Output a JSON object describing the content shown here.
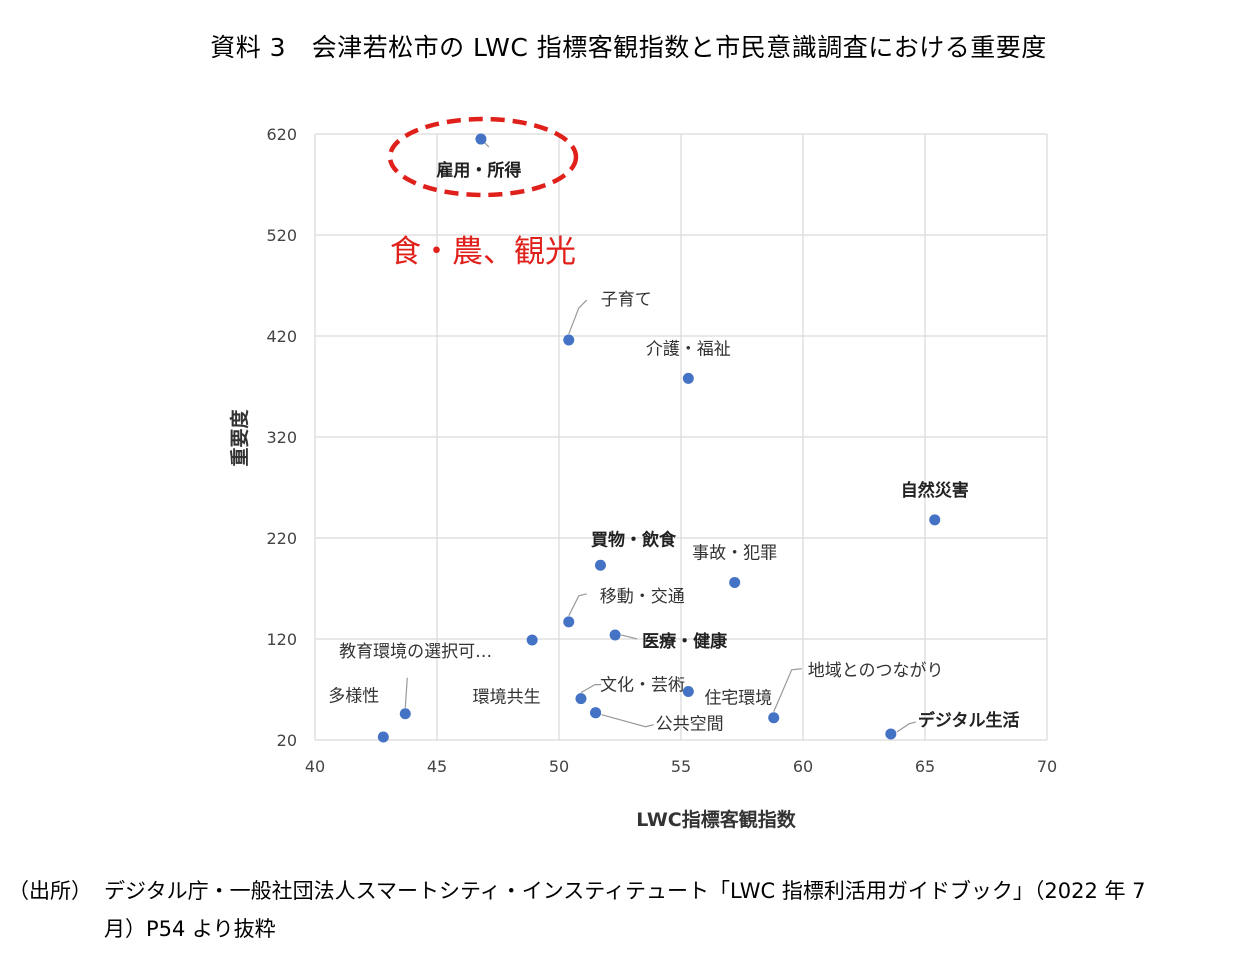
{
  "page": {
    "title": "資料 3　会津若松市の LWC 指標客観指数と市民意識調査における重要度",
    "source_label": "（出所）",
    "source_line1": "デジタル庁・一般社団法人スマートシティ・インスティテュート「LWC 指標利活用ガイドブック」（2022 年 7",
    "source_line2": "月）P54 より抜粋"
  },
  "chart_data": {
    "type": "scatter",
    "xlabel": "LWC指標客観指数",
    "ylabel": "重要度",
    "xlim": [
      40,
      70
    ],
    "ylim": [
      20,
      620
    ],
    "xticks": [
      "40",
      "45",
      "50",
      "55",
      "60",
      "65",
      "70"
    ],
    "yticks": [
      "620",
      "520",
      "420",
      "320",
      "220",
      "120",
      "20"
    ],
    "grid": true,
    "point_color": "#4472c4",
    "annotation": {
      "text": "食・農、観光",
      "color": "#e0201b"
    },
    "highlight": {
      "target": "雇用・所得",
      "shape": "dashed-ellipse",
      "color": "#e0201b"
    },
    "points": [
      {
        "label": "雇用・所得",
        "x": 46.8,
        "y": 615,
        "bold": true
      },
      {
        "label": "子育て",
        "x": 50.4,
        "y": 416,
        "bold": false
      },
      {
        "label": "介護・福祉",
        "x": 55.3,
        "y": 378,
        "bold": false
      },
      {
        "label": "自然災害",
        "x": 65.4,
        "y": 238,
        "bold": true
      },
      {
        "label": "買物・飲食",
        "x": 51.7,
        "y": 193,
        "bold": true
      },
      {
        "label": "事故・犯罪",
        "x": 57.2,
        "y": 176,
        "bold": false
      },
      {
        "label": "移動・交通",
        "x": 50.4,
        "y": 137,
        "bold": false
      },
      {
        "label": "医療・健康",
        "x": 52.3,
        "y": 124,
        "bold": true
      },
      {
        "label": "教育環境の選択可…",
        "x": 48.9,
        "y": 119,
        "bold": false
      },
      {
        "label": "地域とのつながり",
        "x": 58.8,
        "y": 42,
        "bold": false
      },
      {
        "label": "住宅環境",
        "x": 55.3,
        "y": 68,
        "bold": false
      },
      {
        "label": "文化・芸術",
        "x": 50.9,
        "y": 61,
        "bold": false
      },
      {
        "label": "環境共生",
        "x": 51.5,
        "y": 47,
        "bold": false
      },
      {
        "label": "公共空間",
        "x": 51.5,
        "y": 47,
        "bold": false
      },
      {
        "label": "多様性",
        "x": 43.7,
        "y": 46,
        "bold": false
      },
      {
        "label": "デジタル生活",
        "x": 63.6,
        "y": 26,
        "bold": true
      },
      {
        "label": "",
        "x": 42.8,
        "y": 23,
        "bold": false
      }
    ]
  }
}
